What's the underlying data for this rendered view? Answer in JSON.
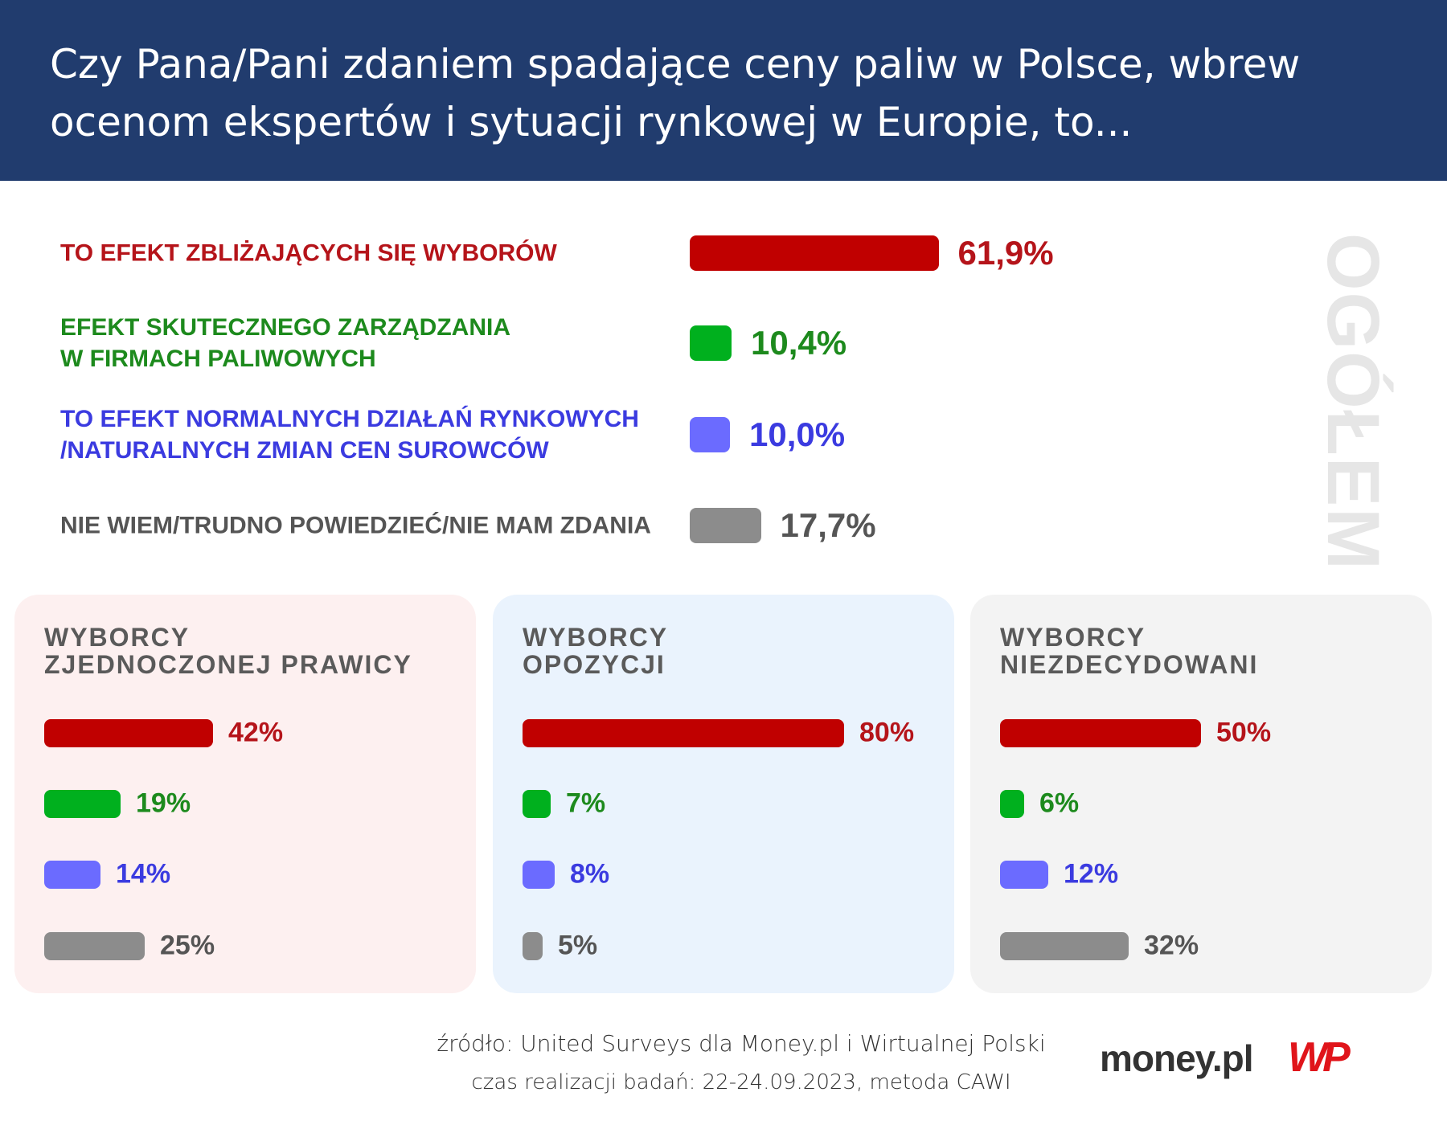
{
  "header": {
    "title": "Czy Pana/Pani zdaniem spadające ceny paliw w Polsce, wbrew ocenom ekspertów i sytuacji rynkowej w Europie, to..."
  },
  "chart_data": [
    {
      "type": "bar",
      "orientation": "horizontal",
      "title": "OGÓŁEM",
      "categories": [
        "TO EFEKT ZBLIŻAJĄCYCH SIĘ WYBORÓW",
        "EFEKT SKUTECZNEGO ZARZĄDZANIA\nW FIRMACH PALIWOWYCH",
        "TO EFEKT NORMALNYCH DZIAŁAŃ RYNKOWYCH\n/NATURALNYCH ZMIAN CEN SUROWCÓW",
        "NIE WIEM/TRUDNO POWIEDZIEĆ/NIE MAM ZDANIA"
      ],
      "values": [
        61.9,
        10.4,
        10.0,
        17.7
      ],
      "value_labels": [
        "61,9%",
        "10,4%",
        "10,0%",
        "17,7%"
      ],
      "colors": [
        "#c00000",
        "#00b01e",
        "#6b6bff",
        "#8c8c8c"
      ],
      "label_colors": [
        "#b5141a",
        "#1d8a1d",
        "#3b3be0",
        "#555555"
      ]
    },
    {
      "type": "bar",
      "orientation": "horizontal",
      "title": "WYBORCY\nZJEDNOCZONEJ PRAWICY",
      "background": "#fdf0f0",
      "values": [
        42,
        19,
        14,
        25
      ],
      "value_labels": [
        "42%",
        "19%",
        "14%",
        "25%"
      ],
      "colors": [
        "#c00000",
        "#00b01e",
        "#6b6bff",
        "#8c8c8c"
      ],
      "label_colors": [
        "#b5141a",
        "#1d8a1d",
        "#3b3be0",
        "#555555"
      ]
    },
    {
      "type": "bar",
      "orientation": "horizontal",
      "title": "WYBORCY\nOPOZYCJI",
      "background": "#eaf3fd",
      "values": [
        80,
        7,
        8,
        5
      ],
      "value_labels": [
        "80%",
        "7%",
        "8%",
        "5%"
      ],
      "colors": [
        "#c00000",
        "#00b01e",
        "#6b6bff",
        "#8c8c8c"
      ],
      "label_colors": [
        "#b5141a",
        "#1d8a1d",
        "#3b3be0",
        "#555555"
      ]
    },
    {
      "type": "bar",
      "orientation": "horizontal",
      "title": "WYBORCY\nNIEZDECYDOWANI",
      "background": "#f3f3f3",
      "values": [
        50,
        6,
        12,
        32
      ],
      "value_labels": [
        "50%",
        "6%",
        "12%",
        "32%"
      ],
      "colors": [
        "#c00000",
        "#00b01e",
        "#6b6bff",
        "#8c8c8c"
      ],
      "label_colors": [
        "#b5141a",
        "#1d8a1d",
        "#3b3be0",
        "#555555"
      ]
    }
  ],
  "footer": {
    "source": "źródło: United Surveys dla Money.pl i Wirtualnej Polski",
    "method": "czas realizacji badań: 22-24.09.2023, metoda CAWI",
    "logo_money": "money.pl",
    "logo_wp": "WP"
  }
}
